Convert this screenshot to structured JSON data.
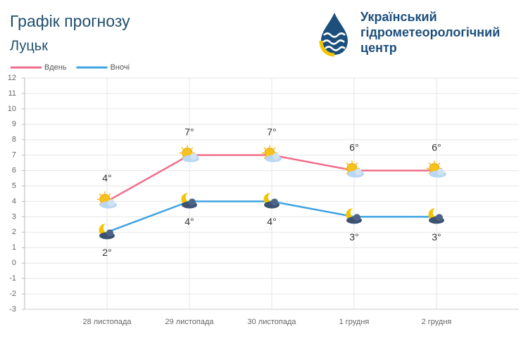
{
  "header": {
    "title": "Графік прогнозу",
    "subtitle": "Луцьк",
    "org": [
      "Український",
      "гідрометеорологічний",
      "центр"
    ]
  },
  "chart_data": {
    "type": "line",
    "categories": [
      "28 листопада",
      "29 листопада",
      "30 листопада",
      "1 грудня",
      "2 грудня"
    ],
    "series": [
      {
        "name": "Вдень",
        "color": "#f06e8c",
        "values": [
          4,
          7,
          7,
          6,
          6
        ],
        "value_labels": [
          "4°",
          "7°",
          "7°",
          "6°",
          "6°"
        ]
      },
      {
        "name": "Вночі",
        "color": "#3ea3e2",
        "values": [
          2,
          4,
          4,
          3,
          3
        ],
        "value_labels": [
          "2°",
          "4°",
          "4°",
          "3°",
          "3°"
        ]
      }
    ],
    "ylim": [
      -3,
      12
    ],
    "yticks": [
      -3,
      -2,
      -1,
      0,
      1,
      2,
      3,
      4,
      5,
      6,
      7,
      8,
      9,
      10,
      11,
      12
    ],
    "grid": true
  }
}
